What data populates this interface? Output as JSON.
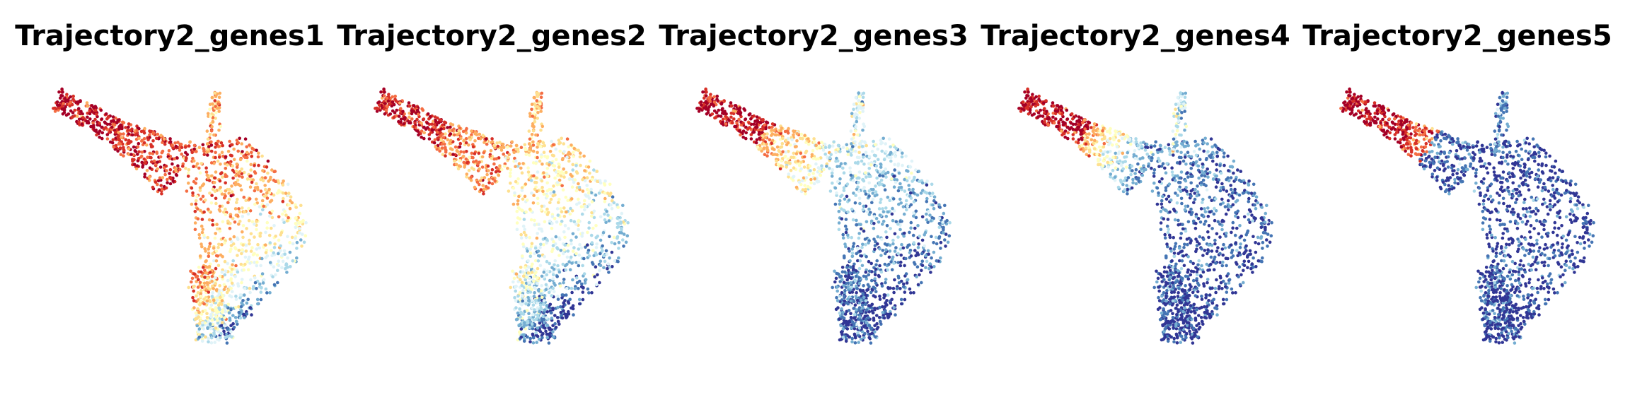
{
  "chart_data": [
    {
      "type": "scatter",
      "title": "Trajectory2_genes1",
      "xlabel": "",
      "ylabel": "",
      "axes_visible": false,
      "colormap": "RdYlBu_r",
      "dominant_colors": [
        "#a50026",
        "#d73027",
        "#f46d43",
        "#fdae61",
        "#abd9e9",
        "#74add1"
      ],
      "expression_pattern": "high across most of the trajectory, lower toward the lower-right tip"
    },
    {
      "type": "scatter",
      "title": "Trajectory2_genes2",
      "xlabel": "",
      "ylabel": "",
      "axes_visible": false,
      "colormap": "RdYlBu_r",
      "dominant_colors": [
        "#a50026",
        "#f46d43",
        "#fdae61",
        "#fee090",
        "#abd9e9",
        "#4575b4"
      ],
      "expression_pattern": "high in upper-left arm, mixed in middle, low toward the lower-right tip"
    },
    {
      "type": "scatter",
      "title": "Trajectory2_genes3",
      "xlabel": "",
      "ylabel": "",
      "axes_visible": false,
      "colormap": "RdYlBu_r",
      "dominant_colors": [
        "#a50026",
        "#d73027",
        "#fdae61",
        "#74add1",
        "#4575b4",
        "#313695"
      ],
      "expression_pattern": "high in upper-left arm, low across the body"
    },
    {
      "type": "scatter",
      "title": "Trajectory2_genes4",
      "xlabel": "",
      "ylabel": "",
      "axes_visible": false,
      "colormap": "RdYlBu_r",
      "dominant_colors": [
        "#a50026",
        "#f46d43",
        "#abd9e9",
        "#4575b4",
        "#313695"
      ],
      "expression_pattern": "high in upper-left arm only, low elsewhere"
    },
    {
      "type": "scatter",
      "title": "Trajectory2_genes5",
      "xlabel": "",
      "ylabel": "",
      "axes_visible": false,
      "colormap": "RdYlBu_r",
      "dominant_colors": [
        "#a50026",
        "#d73027",
        "#313695"
      ],
      "expression_pattern": "high only at the upper-left tip, low elsewhere"
    }
  ]
}
